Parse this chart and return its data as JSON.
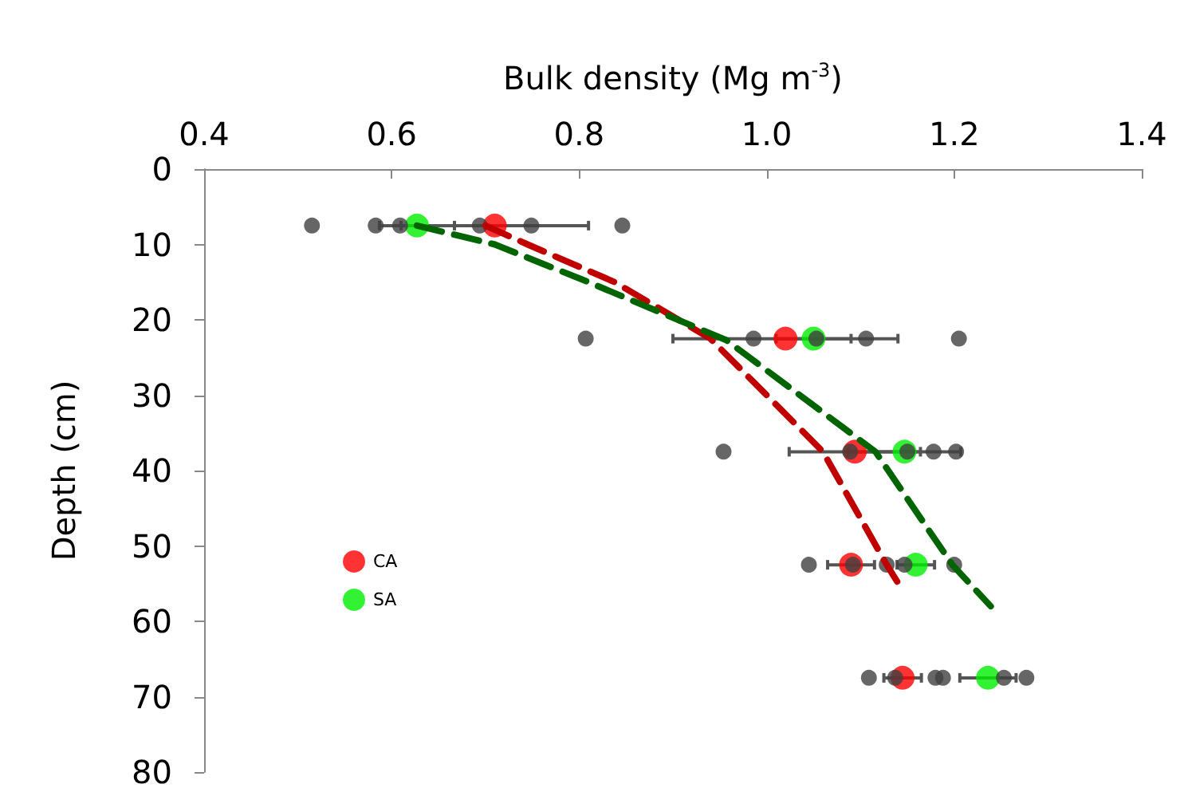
{
  "chart_data": {
    "type": "scatter",
    "xlabel": "Bulk density (Mg m$^{-3}$)",
    "ylabel": "Depth (cm)",
    "xlim": [
      0.4,
      1.4
    ],
    "xticks": [
      0.4,
      0.6,
      0.8,
      {
        "value": 1,
        "label": "1.0"
      },
      1.2,
      1.4
    ],
    "ylim": [
      80,
      0
    ],
    "yticks": [
      0,
      10,
      20,
      30,
      40,
      50,
      60,
      70,
      80
    ],
    "grid": false,
    "legend": "left",
    "marker": "circle",
    "series": [
      {
        "color": "#404040",
        "x": [
          0.515,
          0.583,
          0.609,
          0.694,
          0.749,
          0.846,
          0.807,
          0.986,
          1.053,
          1.106,
          1.205,
          0.954,
          1.089,
          1.15,
          1.178,
          1.202,
          1.045,
          1.092,
          1.128,
          1.147,
          1.2,
          1.109,
          1.137,
          1.18,
          1.188,
          1.253,
          1.277
        ],
        "values": [
          7.5,
          7.5,
          7.5,
          7.5,
          7.5,
          7.5,
          22.5,
          22.5,
          22.5,
          22.5,
          22.5,
          37.5,
          37.5,
          37.5,
          37.5,
          37.5,
          52.5,
          52.5,
          52.5,
          52.5,
          52.5,
          67.5,
          67.5,
          67.5,
          67.5,
          67.5,
          67.5
        ]
      },
      {
        "name": "CA",
        "color": "#ff0000",
        "x": [
          0.71,
          1.02,
          1.094,
          1.09,
          1.145
        ],
        "values": [
          7.5,
          22.5,
          37.5,
          52.5,
          67.5
        ],
        "xerrors": [
          0.1,
          0.12,
          0.07,
          0.025,
          0.02
        ]
      },
      {
        "name": "SA",
        "color": "#00ee00",
        "x": [
          0.627,
          1.05,
          1.147,
          1.159,
          1.236
        ],
        "values": [
          7.5,
          22.5,
          37.5,
          52.5,
          67.5
        ],
        "xerrors": [
          0.04,
          0.04,
          0.06,
          0.02,
          0.03
        ]
      },
      {
        "type": "line",
        "color": "#c00000",
        "line_style": "dashed",
        "marker": "none",
        "x": [
          0.7,
          0.745,
          0.838,
          0.94,
          1.06,
          1.128,
          1.145
        ],
        "values": [
          7.5,
          10,
          15,
          22.5,
          37.5,
          52.5,
          55.9
        ]
      },
      {
        "type": "line",
        "color": "#006400",
        "line_style": "dashed",
        "marker": "none",
        "x": [
          0.627,
          0.71,
          0.81,
          0.957,
          1.116,
          1.198,
          1.239
        ],
        "values": [
          7.5,
          10,
          15,
          22.7,
          37.5,
          52.5,
          58
        ]
      }
    ]
  }
}
